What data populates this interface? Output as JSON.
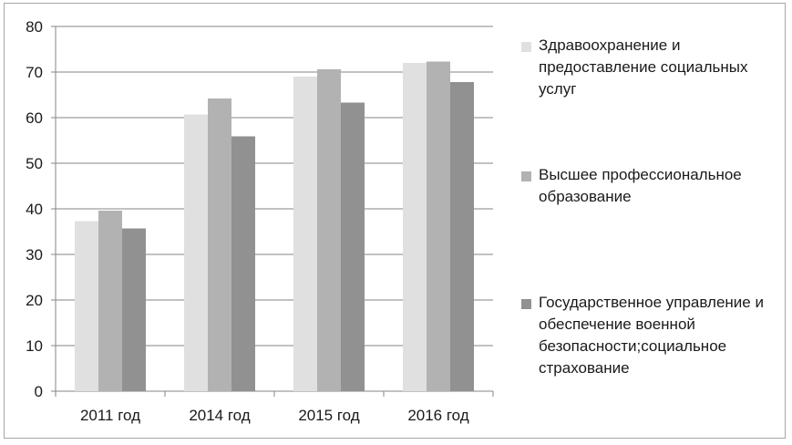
{
  "chart_data": {
    "type": "bar",
    "categories": [
      "2011 год",
      "2014 год",
      "2015 год",
      "2016 год"
    ],
    "series": [
      {
        "name": "Здравоохранение и предоставление социальных услуг",
        "color": "#e0e0e0",
        "values": [
          37.3,
          60.7,
          69.0,
          72.0
        ]
      },
      {
        "name": "Высшее профессиональное образование",
        "color": "#b2b2b2",
        "values": [
          39.6,
          64.2,
          70.6,
          72.3
        ]
      },
      {
        "name": "Государственное управление  и обеспечение военной безопасности;социальное страхование",
        "color": "#919191",
        "values": [
          35.7,
          55.9,
          63.3,
          67.8
        ]
      }
    ],
    "ylim": [
      0,
      80
    ],
    "yticks": [
      0,
      10,
      20,
      30,
      40,
      50,
      60,
      70,
      80
    ],
    "grid": true,
    "legend_position": "right"
  }
}
